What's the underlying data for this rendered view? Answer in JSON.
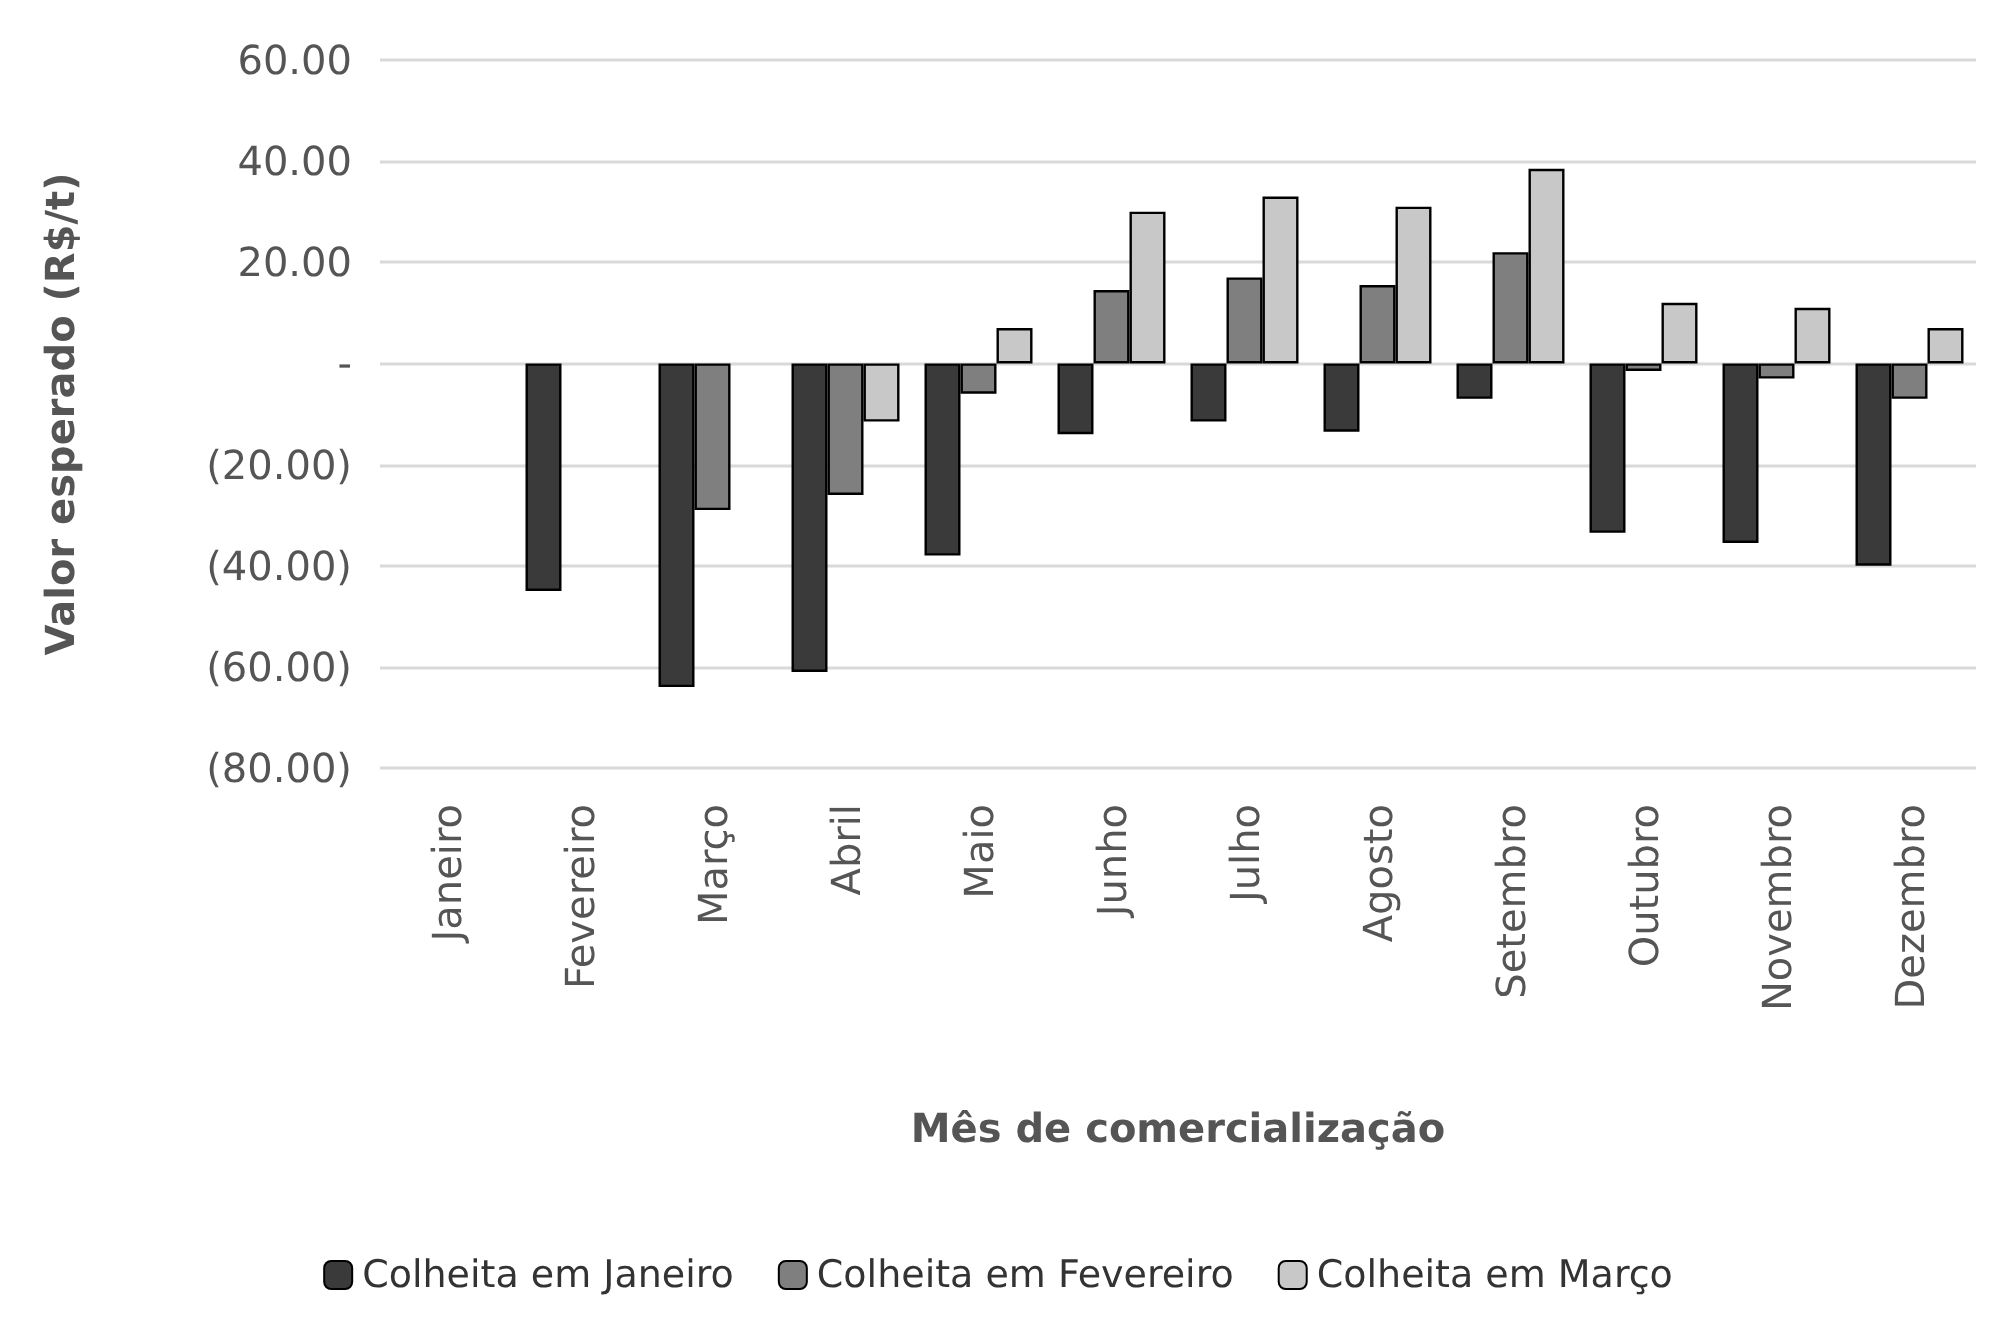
{
  "chart_data": {
    "type": "bar",
    "xlabel": "Mês de comercialização",
    "ylabel": "Valor esperado (R$/t)",
    "categories": [
      "Janeiro",
      "Fevereiro",
      "Março",
      "Abril",
      "Maio",
      "Junho",
      "Julho",
      "Agosto",
      "Setembro",
      "Outubro",
      "Novembro",
      "Dezembro"
    ],
    "series": [
      {
        "name": "Colheita em Janeiro",
        "color": "#3a3a3a",
        "values": [
          null,
          -45,
          -64,
          -61,
          -38,
          -14,
          -11.5,
          -13.5,
          -7,
          -33.5,
          -35.5,
          -40
        ]
      },
      {
        "name": "Colheita em Fevereiro",
        "color": "#7f7f7f",
        "values": [
          null,
          null,
          -29,
          -26,
          -6,
          14.5,
          17,
          15.5,
          22,
          -1.5,
          -3,
          -7
        ]
      },
      {
        "name": "Colheita em Março",
        "color": "#c8c8c8",
        "values": [
          null,
          null,
          null,
          -11.5,
          7,
          30,
          33,
          31,
          38.5,
          12,
          11,
          7
        ]
      }
    ],
    "ylim": [
      -80,
      60
    ],
    "yticks": [
      {
        "value": -80,
        "label": "(80.00)"
      },
      {
        "value": -60,
        "label": "(60.00)"
      },
      {
        "value": -40,
        "label": "(40.00)"
      },
      {
        "value": -20,
        "label": "(20.00)"
      },
      {
        "value": 0,
        "label": "-"
      },
      {
        "value": 20,
        "label": "20.00"
      },
      {
        "value": 40,
        "label": "40.00"
      },
      {
        "value": 60,
        "label": "60.00"
      }
    ],
    "grid": "y",
    "legend": "bottom"
  }
}
